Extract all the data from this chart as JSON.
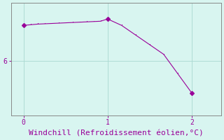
{
  "x": [
    0,
    0.083333,
    0.166667,
    0.25,
    0.333333,
    0.416667,
    0.5,
    0.583333,
    0.666667,
    0.75,
    0.833333,
    0.916667,
    1.0,
    1.166667,
    1.333333,
    1.5,
    1.666667,
    1.833333,
    2.0
  ],
  "y": [
    7.1,
    7.12,
    7.14,
    7.15,
    7.16,
    7.17,
    7.18,
    7.19,
    7.2,
    7.21,
    7.22,
    7.23,
    7.3,
    7.1,
    6.8,
    6.5,
    6.2,
    5.6,
    5.0
  ],
  "line_color": "#990099",
  "marker": "D",
  "marker_size": 2,
  "marker_only_indices": [
    0,
    12,
    18
  ],
  "background_color": "#d8f5f0",
  "grid_color": "#aad8d0",
  "xlabel": "Windchill (Refroidissement éolien,°C)",
  "xlabel_color": "#990099",
  "xlabel_fontsize": 8,
  "ytick_labels": [
    "6"
  ],
  "ytick_values": [
    6
  ],
  "xtick_values": [
    0,
    1,
    2
  ],
  "xtick_labels": [
    "0",
    "1",
    "2"
  ],
  "xlim": [
    -0.15,
    2.35
  ],
  "ylim": [
    4.3,
    7.8
  ],
  "tick_color": "#990099",
  "spine_color": "#888888",
  "linewidth": 0.8
}
